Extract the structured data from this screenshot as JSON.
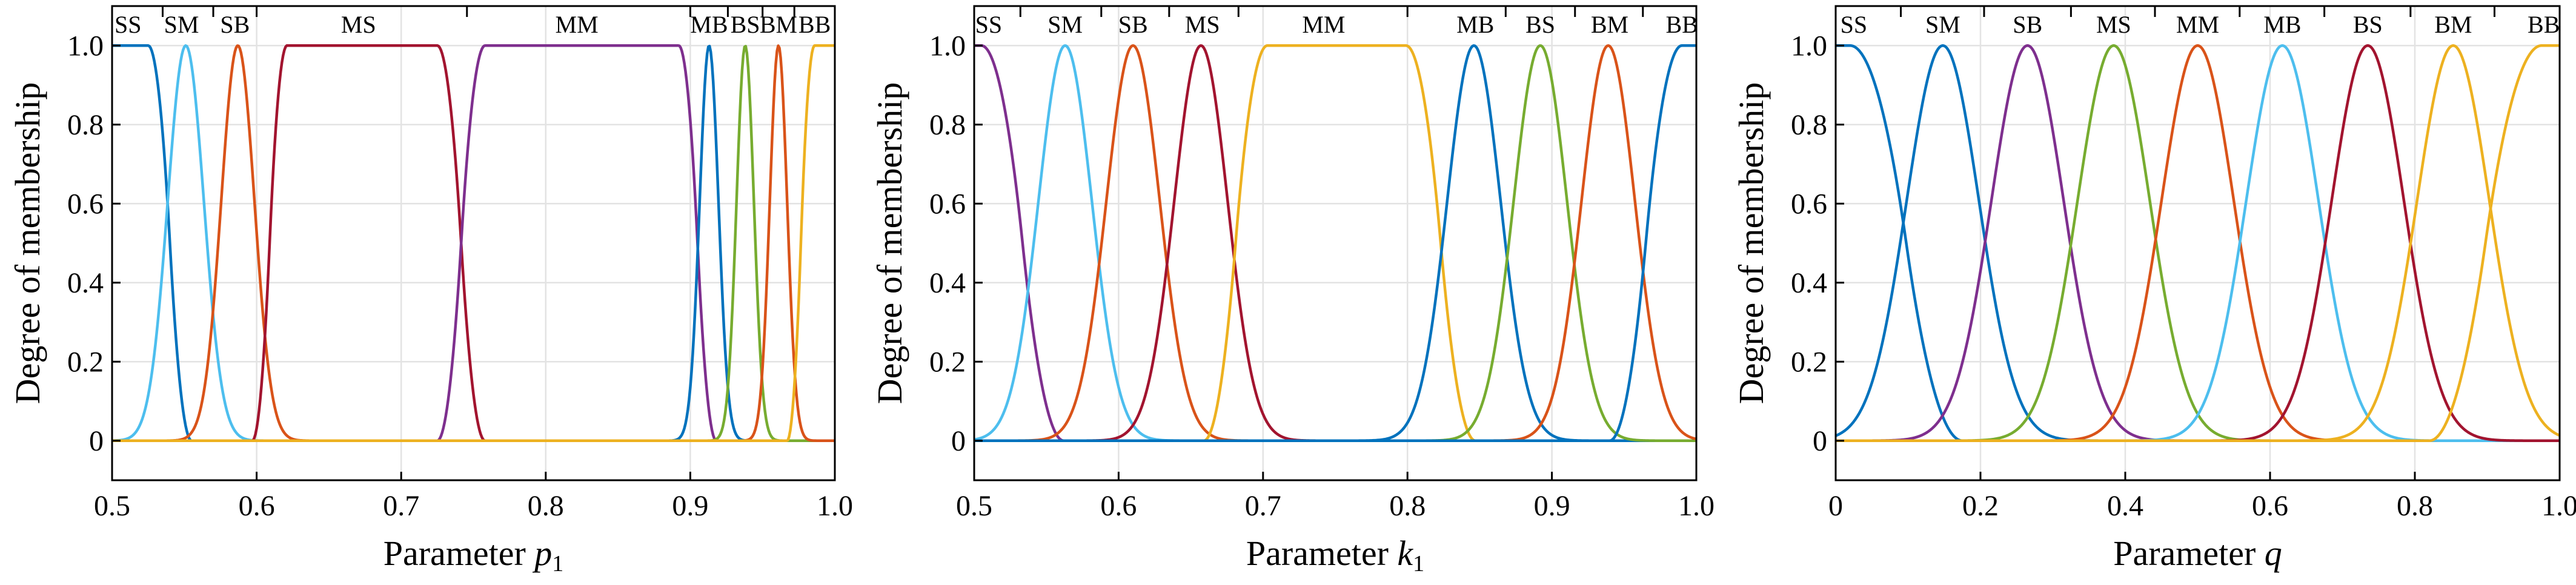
{
  "chart_data": [
    {
      "type": "line",
      "xlabel_prefix": "Parameter ",
      "xlabel_var": "p",
      "xlabel_sub": "1",
      "ylabel": "Degree of membership",
      "xlim": [
        0.5,
        1.0
      ],
      "ylim": [
        -0.1,
        1.1
      ],
      "xticks": [
        "0.5",
        "0.6",
        "0.7",
        "0.8",
        "0.9",
        "1.0"
      ],
      "xtick_values": [
        0.5,
        0.6,
        0.7,
        0.8,
        0.9,
        1.0
      ],
      "yticks": [
        "0",
        "0.2",
        "0.4",
        "0.6",
        "0.8",
        "1.0"
      ],
      "ytick_values": [
        0,
        0.2,
        0.4,
        0.6,
        0.8,
        1.0
      ],
      "grid": true,
      "region_dividers": [
        0.5,
        0.535,
        0.57,
        0.6,
        0.7455,
        0.9,
        0.926,
        0.95,
        0.972,
        1.0
      ],
      "series": [
        {
          "name": "SS",
          "label_x": 0.511,
          "color": "#0072bd",
          "shape": "zmf",
          "params": [
            0.525,
            0.555
          ]
        },
        {
          "name": "SM",
          "label_x": 0.548,
          "color": "#4dbeee",
          "shape": "gauss",
          "params": [
            0.551,
            0.0125
          ]
        },
        {
          "name": "SB",
          "label_x": 0.585,
          "color": "#d95319",
          "shape": "gauss",
          "params": [
            0.587,
            0.0115
          ]
        },
        {
          "name": "MS",
          "label_x": 0.6705,
          "color": "#a2142f",
          "shape": "trap",
          "params": [
            0.597,
            0.621,
            0.725,
            0.758
          ]
        },
        {
          "name": "MM",
          "label_x": 0.8215,
          "color": "#7e2f8e",
          "shape": "trap",
          "params": [
            0.725,
            0.758,
            0.892,
            0.918
          ]
        },
        {
          "name": "MB",
          "label_x": 0.913,
          "color": "#0072bd",
          "shape": "gauss",
          "params": [
            0.913,
            0.0065
          ]
        },
        {
          "name": "BS",
          "label_x": 0.938,
          "color": "#77ac30",
          "shape": "gauss",
          "params": [
            0.938,
            0.006
          ]
        },
        {
          "name": "BM",
          "label_x": 0.961,
          "color": "#d95319",
          "shape": "gauss",
          "params": [
            0.961,
            0.006
          ]
        },
        {
          "name": "BB",
          "label_x": 0.986,
          "color": "#edb120",
          "shape": "smf",
          "params": [
            0.967,
            0.986
          ]
        }
      ]
    },
    {
      "type": "line",
      "xlabel_prefix": "Parameter ",
      "xlabel_var": "k",
      "xlabel_sub": "1",
      "ylabel": "Degree of membership",
      "xlim": [
        0.5,
        1.0
      ],
      "ylim": [
        -0.1,
        1.1
      ],
      "xticks": [
        "0.5",
        "0.6",
        "0.7",
        "0.8",
        "0.9",
        "1.0"
      ],
      "xtick_values": [
        0.5,
        0.6,
        0.7,
        0.8,
        0.9,
        1.0
      ],
      "yticks": [
        "0",
        "0.2",
        "0.4",
        "0.6",
        "0.8",
        "1.0"
      ],
      "ytick_values": [
        0,
        0.2,
        0.4,
        0.6,
        0.8,
        1.0
      ],
      "grid": true,
      "region_dividers": [
        0.5,
        0.532,
        0.588,
        0.635,
        0.683,
        0.8,
        0.868,
        0.916,
        0.963,
        1.0
      ],
      "series": [
        {
          "name": "SS",
          "label_x": 0.51,
          "color": "#7e2f8e",
          "shape": "zmf",
          "params": [
            0.505,
            0.562
          ]
        },
        {
          "name": "SM",
          "label_x": 0.563,
          "color": "#4dbeee",
          "shape": "gauss",
          "params": [
            0.563,
            0.0185
          ]
        },
        {
          "name": "SB",
          "label_x": 0.61,
          "color": "#d95319",
          "shape": "gauss",
          "params": [
            0.61,
            0.0185
          ]
        },
        {
          "name": "MS",
          "label_x": 0.658,
          "color": "#a2142f",
          "shape": "gauss",
          "params": [
            0.657,
            0.0185
          ]
        },
        {
          "name": "MM",
          "label_x": 0.742,
          "color": "#edb120",
          "shape": "trap",
          "params": [
            0.659,
            0.703,
            0.799,
            0.847
          ]
        },
        {
          "name": "MB",
          "label_x": 0.847,
          "color": "#0072bd",
          "shape": "gauss",
          "params": [
            0.846,
            0.0185
          ]
        },
        {
          "name": "BS",
          "label_x": 0.892,
          "color": "#77ac30",
          "shape": "gauss",
          "params": [
            0.892,
            0.0185
          ]
        },
        {
          "name": "BM",
          "label_x": 0.94,
          "color": "#d95319",
          "shape": "gauss",
          "params": [
            0.939,
            0.0185
          ]
        },
        {
          "name": "BB",
          "label_x": 0.99,
          "color": "#0072bd",
          "shape": "smf",
          "params": [
            0.94,
            0.99
          ]
        }
      ]
    },
    {
      "type": "line",
      "xlabel_prefix": "Parameter ",
      "xlabel_var": "q",
      "xlabel_sub": "",
      "ylabel": "Degree of membership",
      "xlim": [
        0.0,
        1.0
      ],
      "ylim": [
        -0.1,
        1.1
      ],
      "xticks": [
        "0",
        "0.2",
        "0.4",
        "0.6",
        "0.8",
        "1.0"
      ],
      "xtick_values": [
        0,
        0.2,
        0.4,
        0.6,
        0.8,
        1.0
      ],
      "yticks": [
        "0",
        "0.2",
        "0.4",
        "0.6",
        "0.8",
        "1.0"
      ],
      "ytick_values": [
        0,
        0.2,
        0.4,
        0.6,
        0.8,
        1.0
      ],
      "grid": true,
      "region_dividers": [
        0.0,
        0.09,
        0.205,
        0.325,
        0.441,
        0.558,
        0.675,
        0.794,
        0.91,
        1.0
      ],
      "series": [
        {
          "name": "SS",
          "label_x": 0.025,
          "color": "#0072bd",
          "shape": "zmf",
          "params": [
            0.02,
            0.175
          ]
        },
        {
          "name": "SM",
          "label_x": 0.148,
          "color": "#0072bd",
          "shape": "gauss",
          "params": [
            0.148,
            0.05
          ]
        },
        {
          "name": "SB",
          "label_x": 0.265,
          "color": "#7e2f8e",
          "shape": "gauss",
          "params": [
            0.265,
            0.05
          ]
        },
        {
          "name": "MS",
          "label_x": 0.384,
          "color": "#77ac30",
          "shape": "gauss",
          "params": [
            0.384,
            0.05
          ]
        },
        {
          "name": "MM",
          "label_x": 0.5,
          "color": "#d95319",
          "shape": "gauss",
          "params": [
            0.5,
            0.05
          ]
        },
        {
          "name": "MB",
          "label_x": 0.617,
          "color": "#4dbeee",
          "shape": "gauss",
          "params": [
            0.617,
            0.05
          ]
        },
        {
          "name": "BS",
          "label_x": 0.735,
          "color": "#a2142f",
          "shape": "gauss",
          "params": [
            0.735,
            0.05
          ]
        },
        {
          "name": "BM",
          "label_x": 0.853,
          "color": "#edb120",
          "shape": "gauss",
          "params": [
            0.853,
            0.05
          ]
        },
        {
          "name": "BB",
          "label_x": 0.978,
          "color": "#edb120",
          "shape": "smf",
          "params": [
            0.82,
            0.975
          ]
        }
      ]
    }
  ]
}
